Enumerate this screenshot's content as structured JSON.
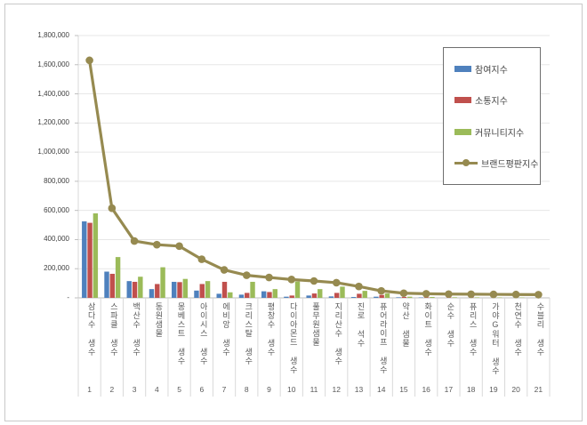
{
  "chart_data": {
    "type": "bar",
    "subtype": "grouped-bars-with-line-overlay",
    "title": "",
    "xlabel": "",
    "ylabel": "",
    "categories": [
      "삼다수 생수",
      "스파클 생수",
      "백산수 생수",
      "동원샘물",
      "몽베스트 생수",
      "아이시스 생수",
      "에비앙 생수",
      "크리스탈 생수",
      "평창수 생수",
      "다이아몬드 생수",
      "풀무원샘물",
      "지리산수 생수",
      "진로 석수",
      "퓨어라이프 생수",
      "약산 샘물",
      "화이트 생수",
      "순수 생수",
      "퓨리스 생수",
      "가야G워터 생수",
      "천연수 생수",
      "수블리 생수"
    ],
    "category_ranks": [
      "1",
      "2",
      "3",
      "4",
      "5",
      "6",
      "7",
      "8",
      "9",
      "10",
      "11",
      "12",
      "13",
      "14",
      "15",
      "16",
      "17",
      "18",
      "19",
      "20",
      "21"
    ],
    "series": [
      {
        "name": "참여지수",
        "chart_type": "bar",
        "color": "#4F81BD",
        "values": [
          525000,
          180000,
          115000,
          60000,
          110000,
          50000,
          28000,
          22000,
          45000,
          8000,
          16000,
          10000,
          6000,
          8000,
          4000,
          3000,
          2000,
          2000,
          1500,
          1500,
          1000
        ]
      },
      {
        "name": "소통지수",
        "chart_type": "bar",
        "color": "#C0504D",
        "values": [
          515000,
          165000,
          110000,
          95000,
          108000,
          95000,
          110000,
          34000,
          40000,
          16000,
          30000,
          34000,
          28000,
          20000,
          6000,
          4000,
          3000,
          2500,
          2000,
          2000,
          1500
        ]
      },
      {
        "name": "커뮤니티지수",
        "chart_type": "bar",
        "color": "#9BBB59",
        "values": [
          580000,
          280000,
          145000,
          210000,
          130000,
          115000,
          38000,
          110000,
          60000,
          112000,
          60000,
          77000,
          48000,
          30000,
          8000,
          6000,
          4000,
          3500,
          3000,
          2500,
          2000
        ]
      },
      {
        "name": "브랜드평판지수",
        "chart_type": "line",
        "color": "#968A50",
        "values": [
          1630000,
          615000,
          390000,
          365000,
          355000,
          265000,
          192000,
          155000,
          140000,
          126000,
          116000,
          104000,
          78000,
          48000,
          32000,
          28000,
          26000,
          25000,
          24000,
          23000,
          22000
        ]
      }
    ],
    "ylim": [
      0,
      1800000
    ],
    "y_tick_step": 200000,
    "y_tick_labels": [
      "-",
      "200,000",
      "400,000",
      "600,000",
      "800,000",
      "1,000,000",
      "1,200,000",
      "1,400,000",
      "1,600,000",
      "1,800,000"
    ],
    "grid": "horizontal",
    "legend_position": "top-right"
  },
  "colors": {
    "gridline": "#E7E7E7",
    "axis": "#BFBFBF",
    "separator": "#D9D9D9",
    "text": "#404040"
  }
}
